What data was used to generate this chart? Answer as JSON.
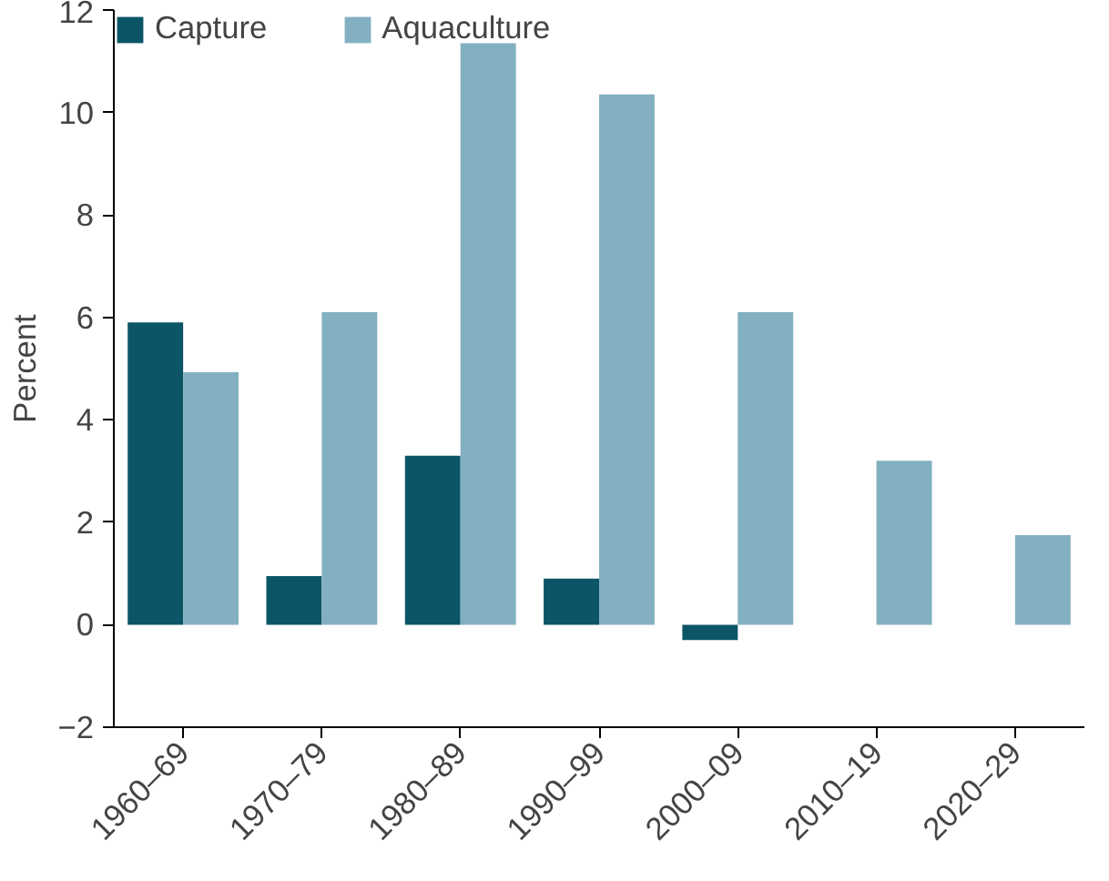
{
  "chart_data": {
    "type": "bar",
    "ylabel": "Percent",
    "categories": [
      "1960–69",
      "1970–79",
      "1980–89",
      "1990–99",
      "2000–09",
      "2010–19",
      "2020–29"
    ],
    "series": [
      {
        "name": "Capture",
        "color": "#0c5566",
        "values": [
          5.9,
          0.95,
          3.3,
          0.9,
          -0.3,
          null,
          null
        ]
      },
      {
        "name": "Aquaculture",
        "color": "#82b0c1",
        "values": [
          4.93,
          6.1,
          11.35,
          10.35,
          6.1,
          3.2,
          1.75
        ]
      }
    ],
    "ylim": [
      -2,
      12
    ],
    "yticks": [
      -2,
      0,
      2,
      4,
      6,
      8,
      10,
      12
    ],
    "grid": false,
    "legend": "top left"
  }
}
